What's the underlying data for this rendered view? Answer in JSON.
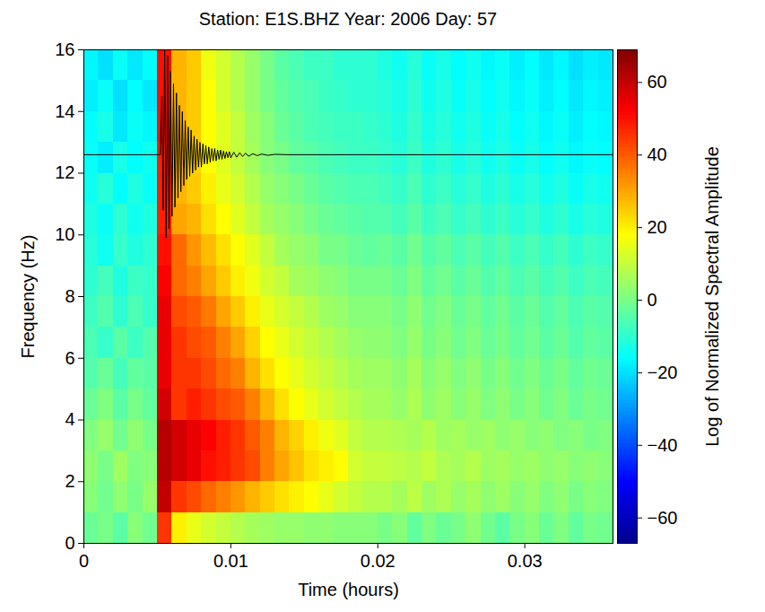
{
  "chart_data": {
    "type": "heatmap",
    "title": "Station: E1S.BHZ Year: 2006  Day: 57",
    "x_label": "Time (hours)",
    "y_label": "Frequency (Hz)",
    "xlim": [
      0,
      0.036
    ],
    "xticks": [
      0,
      0.01,
      0.02,
      0.03
    ],
    "ylim": [
      0,
      16
    ],
    "yticks": [
      0,
      2,
      4,
      6,
      8,
      10,
      12,
      14,
      16
    ],
    "cells": {
      "time_edges": [
        0,
        0.001,
        0.002,
        0.003,
        0.004,
        0.005,
        0.006,
        0.007,
        0.008,
        0.009,
        0.01,
        0.011,
        0.012,
        0.013,
        0.014,
        0.015,
        0.016,
        0.017,
        0.018,
        0.019,
        0.02,
        0.021,
        0.022,
        0.023,
        0.024,
        0.025,
        0.026,
        0.027,
        0.028,
        0.029,
        0.03,
        0.031,
        0.032,
        0.033,
        0.034,
        0.035,
        0.036
      ],
      "frequency_edges": [
        0,
        1,
        2,
        3,
        4,
        5,
        6,
        7,
        8,
        9,
        10,
        11,
        12,
        13,
        14,
        15,
        16
      ],
      "values": [
        [
          -2,
          0,
          -4,
          2,
          -1,
          45,
          20,
          15,
          12,
          10,
          8,
          6,
          5,
          4,
          4,
          3,
          3,
          2,
          2,
          2,
          0,
          2,
          -3,
          1,
          -2,
          0,
          3,
          -1,
          -4,
          0,
          2,
          -2,
          1,
          -3,
          0,
          -1
        ],
        [
          2,
          -1,
          3,
          0,
          4,
          60,
          45,
          42,
          38,
          35,
          32,
          28,
          25,
          22,
          20,
          18,
          15,
          12,
          10,
          8,
          8,
          6,
          9,
          5,
          7,
          4,
          6,
          3,
          5,
          2,
          4,
          1,
          3,
          0,
          2,
          1
        ],
        [
          3,
          0,
          5,
          1,
          2,
          62,
          58,
          55,
          50,
          48,
          45,
          42,
          35,
          30,
          26,
          22,
          20,
          18,
          12,
          10,
          10,
          9,
          8,
          10,
          7,
          6,
          8,
          5,
          6,
          4,
          5,
          3,
          4,
          2,
          3,
          2
        ],
        [
          1,
          4,
          -1,
          3,
          0,
          62,
          58,
          55,
          52,
          48,
          45,
          40,
          35,
          28,
          24,
          20,
          16,
          14,
          10,
          8,
          8,
          7,
          6,
          8,
          5,
          6,
          4,
          5,
          3,
          4,
          2,
          3,
          1,
          2,
          0,
          1
        ],
        [
          -2,
          1,
          -4,
          0,
          -3,
          58,
          45,
          48,
          45,
          42,
          40,
          35,
          28,
          22,
          18,
          15,
          12,
          10,
          8,
          6,
          6,
          4,
          7,
          3,
          5,
          2,
          4,
          1,
          3,
          0,
          2,
          -1,
          1,
          -2,
          0,
          -1
        ],
        [
          -5,
          -2,
          -7,
          -3,
          -4,
          55,
          45,
          45,
          42,
          38,
          35,
          28,
          22,
          18,
          15,
          12,
          10,
          8,
          6,
          5,
          5,
          3,
          6,
          2,
          4,
          1,
          3,
          0,
          2,
          -1,
          1,
          -2,
          0,
          -3,
          -1,
          -2
        ],
        [
          -6,
          -9,
          -4,
          -8,
          -5,
          55,
          45,
          42,
          40,
          35,
          30,
          24,
          18,
          15,
          12,
          10,
          8,
          6,
          4,
          3,
          3,
          1,
          4,
          0,
          2,
          -1,
          1,
          -2,
          0,
          -3,
          -1,
          -4,
          -2,
          -5,
          -3,
          -4
        ],
        [
          -8,
          -5,
          -10,
          -6,
          -9,
          55,
          42,
          40,
          36,
          30,
          25,
          20,
          15,
          12,
          10,
          8,
          5,
          4,
          2,
          2,
          2,
          0,
          3,
          -1,
          1,
          -2,
          0,
          -3,
          -1,
          -4,
          -2,
          -5,
          -3,
          -6,
          -4,
          -5
        ],
        [
          -10,
          -7,
          -12,
          -8,
          -9,
          52,
          38,
          35,
          30,
          25,
          20,
          16,
          12,
          10,
          6,
          5,
          3,
          2,
          0,
          0,
          0,
          -2,
          1,
          -3,
          -1,
          -4,
          -2,
          -5,
          -3,
          -6,
          -4,
          -7,
          -5,
          -8,
          -6,
          -7
        ],
        [
          -11,
          -14,
          -9,
          -12,
          -10,
          50,
          38,
          32,
          27,
          22,
          18,
          14,
          10,
          6,
          4,
          3,
          0,
          0,
          -2,
          -3,
          -2,
          -4,
          -1,
          -5,
          -3,
          -6,
          -4,
          -7,
          -5,
          -8,
          -6,
          -9,
          -7,
          -10,
          -8,
          -9
        ],
        [
          -12,
          -15,
          -10,
          -14,
          -12,
          48,
          30,
          28,
          22,
          18,
          14,
          10,
          6,
          4,
          2,
          0,
          -2,
          -3,
          -4,
          -5,
          -5,
          -7,
          -4,
          -8,
          -6,
          -9,
          -7,
          -10,
          -8,
          -11,
          -9,
          -12,
          -10,
          -13,
          -11,
          -12
        ],
        [
          -14,
          -11,
          -16,
          -12,
          -15,
          48,
          28,
          25,
          20,
          15,
          12,
          8,
          4,
          2,
          0,
          -2,
          -4,
          -5,
          -6,
          -6,
          -7,
          -9,
          -6,
          -10,
          -8,
          -11,
          -9,
          -12,
          -10,
          -13,
          -11,
          -14,
          -12,
          -15,
          -13,
          -14
        ],
        [
          -15,
          -18,
          -13,
          -16,
          -14,
          48,
          28,
          24,
          18,
          14,
          10,
          6,
          2,
          0,
          -3,
          -4,
          -6,
          -7,
          -8,
          -8,
          -9,
          -11,
          -8,
          -12,
          -10,
          -13,
          -11,
          -14,
          -12,
          -15,
          -13,
          -16,
          -14,
          -17,
          -15,
          -16
        ],
        [
          -16,
          -13,
          -19,
          -15,
          -17,
          50,
          28,
          25,
          18,
          14,
          10,
          5,
          2,
          -2,
          -4,
          -6,
          -7,
          -8,
          -8,
          -9,
          -10,
          -12,
          -9,
          -13,
          -11,
          -14,
          -12,
          -15,
          -13,
          -16,
          -14,
          -17,
          -15,
          -18,
          -16,
          -17
        ],
        [
          -18,
          -15,
          -20,
          -16,
          -19,
          50,
          28,
          25,
          18,
          12,
          8,
          4,
          0,
          -3,
          -5,
          -6,
          -8,
          -9,
          -10,
          -10,
          -11,
          -13,
          -10,
          -14,
          -12,
          -15,
          -13,
          -16,
          -14,
          -17,
          -15,
          -18,
          -16,
          -19,
          -17,
          -18
        ],
        [
          -17,
          -20,
          -15,
          -19,
          -16,
          50,
          28,
          25,
          16,
          12,
          8,
          4,
          0,
          -4,
          -6,
          -8,
          -8,
          -10,
          -10,
          -10,
          -12,
          -14,
          -11,
          -15,
          -13,
          -16,
          -14,
          -17,
          -15,
          -18,
          -16,
          -19,
          -17,
          -20,
          -18,
          -19
        ]
      ]
    },
    "colorbar": {
      "label": "Log of Normalized Spectral Amplitude",
      "range": [
        -67,
        69
      ],
      "ticks": [
        -60,
        -40,
        -20,
        0,
        20,
        40,
        60
      ]
    },
    "waveform": {
      "color": "#000000",
      "x": [
        0,
        0.0052,
        0.0053,
        0.0054,
        0.0055,
        0.0056,
        0.0057,
        0.0058,
        0.0059,
        0.006,
        0.0061,
        0.0062,
        0.0063,
        0.0064,
        0.0065,
        0.0066,
        0.0067,
        0.0068,
        0.0069,
        0.007,
        0.0071,
        0.0072,
        0.0073,
        0.0074,
        0.0075,
        0.0076,
        0.0077,
        0.0078,
        0.0079,
        0.008,
        0.0081,
        0.0082,
        0.0083,
        0.0084,
        0.0085,
        0.0086,
        0.0087,
        0.0088,
        0.0089,
        0.009,
        0.0091,
        0.0092,
        0.0093,
        0.0094,
        0.0095,
        0.0096,
        0.0097,
        0.0098,
        0.0099,
        0.01,
        0.0102,
        0.0104,
        0.0106,
        0.0108,
        0.011,
        0.0112,
        0.0115,
        0.0118,
        0.0121,
        0.0125,
        0.013,
        0.014,
        0.036
      ],
      "y": [
        12.6,
        12.6,
        14.5,
        10.8,
        16.2,
        9.9,
        15.8,
        10.2,
        15.3,
        10.6,
        14.9,
        10.9,
        14.6,
        11.2,
        14.2,
        11.4,
        14.0,
        11.6,
        13.7,
        11.8,
        13.5,
        11.9,
        13.4,
        12.0,
        13.2,
        12.1,
        13.1,
        12.2,
        13.0,
        12.2,
        12.95,
        12.3,
        12.9,
        12.3,
        12.85,
        12.35,
        12.8,
        12.4,
        12.8,
        12.4,
        12.75,
        12.45,
        12.75,
        12.45,
        12.72,
        12.48,
        12.7,
        12.5,
        12.7,
        12.5,
        12.68,
        12.52,
        12.66,
        12.54,
        12.65,
        12.55,
        12.63,
        12.57,
        12.62,
        12.58,
        12.61,
        12.6,
        12.6
      ]
    }
  }
}
